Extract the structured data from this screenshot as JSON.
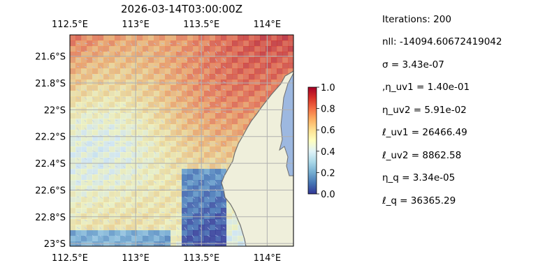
{
  "chart_data": {
    "type": "heatmap",
    "title": "2026-03-14T03:00:00Z",
    "x_tick_labels_top": [
      "112.5°E",
      "113°E",
      "113.5°E",
      "114°E"
    ],
    "x_tick_labels_bottom": [
      "112.5°E",
      "113°E",
      "113.5°E",
      "114°E"
    ],
    "y_tick_labels": [
      "21.6°S",
      "21.8°S",
      "22°S",
      "22.2°S",
      "22.4°S",
      "22.6°S",
      "22.8°S",
      "23°S"
    ],
    "x_ticks": [
      112.5,
      113.0,
      113.5,
      114.0
    ],
    "y_ticks": [
      -21.6,
      -21.8,
      -22.0,
      -22.2,
      -22.4,
      -22.6,
      -22.8,
      -23.0
    ],
    "lon_range": [
      112.5,
      114.2
    ],
    "lat_range": [
      -23.02,
      -21.44
    ],
    "colorbar": {
      "range": [
        0.0,
        1.0
      ],
      "tick_labels": [
        "1.0",
        "0.8",
        "0.6",
        "0.4",
        "0.2",
        "0.0"
      ],
      "tick_values": [
        1.0,
        0.8,
        0.6,
        0.4,
        0.2,
        0.0
      ],
      "colormap": [
        "#313695",
        "#4575b4",
        "#74add1",
        "#abd9e9",
        "#e0f3f8",
        "#ffffbf",
        "#fee090",
        "#fdae61",
        "#f46d43",
        "#d73027",
        "#a50026"
      ]
    },
    "grid": true,
    "colors": {
      "land": "#efefdb",
      "ocean": "#9db8e0",
      "coast": "#6f6f6f",
      "grid": "#b0b0b0"
    }
  },
  "parameters": [
    "Iterations: 200",
    "nll: -14094.60672419042",
    "σ = 3.43e-07",
    ",η_uv1 = 1.40e-01",
    "η_uv2 = 5.91e-02",
    "ℓ_uv1 = 26466.49",
    "ℓ_uv2 = 8862.58",
    "η_q = 3.34e-05",
    "ℓ_q = 36365.29"
  ]
}
